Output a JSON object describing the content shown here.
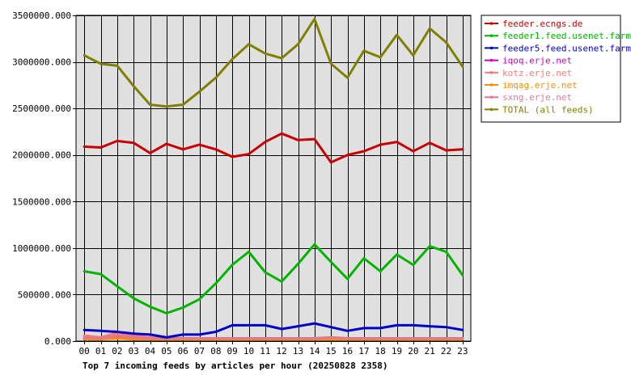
{
  "chart_data": {
    "type": "line",
    "title": "Top 7 incoming feeds by articles per hour (20250828 2358)",
    "categories": [
      "00",
      "01",
      "02",
      "03",
      "04",
      "05",
      "06",
      "07",
      "08",
      "09",
      "10",
      "11",
      "12",
      "13",
      "14",
      "15",
      "16",
      "17",
      "18",
      "19",
      "20",
      "21",
      "22",
      "23"
    ],
    "ylim": [
      0,
      3500000
    ],
    "y_ticks": [
      0,
      500000,
      1000000,
      1500000,
      2000000,
      2500000,
      3000000,
      3500000
    ],
    "y_tick_labels": [
      "0.000",
      "500000.000",
      "1000000.000",
      "1500000.000",
      "2000000.000",
      "2500000.000",
      "3000000.000",
      "3500000.000"
    ],
    "grid": true,
    "legend_position": "top-right",
    "series": [
      {
        "name": "feeder.ecngs.de",
        "color": "#c80000",
        "values": [
          2090000,
          2080000,
          2150000,
          2130000,
          2020000,
          2120000,
          2060000,
          2110000,
          2060000,
          1980000,
          2010000,
          2140000,
          2230000,
          2160000,
          2170000,
          1920000,
          2000000,
          2040000,
          2110000,
          2140000,
          2040000,
          2130000,
          2050000,
          2060000
        ]
      },
      {
        "name": "feeder1.feed.usenet.farm",
        "color": "#00b400",
        "values": [
          750000,
          720000,
          590000,
          460000,
          370000,
          300000,
          360000,
          450000,
          620000,
          820000,
          960000,
          740000,
          640000,
          830000,
          1040000,
          850000,
          670000,
          890000,
          750000,
          930000,
          820000,
          1020000,
          960000,
          710000
        ]
      },
      {
        "name": "feeder5.feed.usenet.farm",
        "color": "#0000c8",
        "values": [
          120000,
          110000,
          100000,
          80000,
          70000,
          40000,
          70000,
          70000,
          100000,
          170000,
          170000,
          170000,
          130000,
          160000,
          190000,
          150000,
          110000,
          140000,
          140000,
          170000,
          170000,
          160000,
          150000,
          120000
        ]
      },
      {
        "name": "iqoq.erje.net",
        "color": "#c800c8",
        "values": [
          30000,
          30000,
          40000,
          30000,
          30000,
          30000,
          30000,
          30000,
          30000,
          30000,
          30000,
          30000,
          30000,
          30000,
          30000,
          30000,
          30000,
          30000,
          30000,
          30000,
          30000,
          30000,
          30000,
          30000
        ]
      },
      {
        "name": "kotz.erje.net",
        "color": "#ff7878",
        "values": [
          60000,
          40000,
          90000,
          60000,
          40000,
          30000,
          30000,
          30000,
          30000,
          30000,
          30000,
          30000,
          30000,
          30000,
          30000,
          40000,
          30000,
          30000,
          30000,
          30000,
          30000,
          30000,
          30000,
          30000
        ]
      },
      {
        "name": "imqag.erje.net",
        "color": "#ff8c00",
        "values": [
          20000,
          20000,
          30000,
          20000,
          20000,
          20000,
          20000,
          20000,
          20000,
          20000,
          20000,
          20000,
          20000,
          20000,
          20000,
          20000,
          20000,
          20000,
          20000,
          20000,
          20000,
          20000,
          20000,
          20000
        ]
      },
      {
        "name": "sxng.erje.net",
        "color": "#e07890",
        "values": [
          40000,
          30000,
          60000,
          40000,
          30000,
          30000,
          30000,
          30000,
          30000,
          30000,
          30000,
          30000,
          30000,
          30000,
          30000,
          40000,
          30000,
          30000,
          30000,
          30000,
          30000,
          30000,
          30000,
          30000
        ]
      },
      {
        "name": "TOTAL (all feeds)",
        "color": "#808000",
        "values": [
          3070000,
          2980000,
          2960000,
          2740000,
          2540000,
          2520000,
          2540000,
          2680000,
          2830000,
          3030000,
          3190000,
          3090000,
          3040000,
          3190000,
          3460000,
          2980000,
          2830000,
          3120000,
          3050000,
          3290000,
          3070000,
          3360000,
          3210000,
          2950000
        ]
      }
    ]
  }
}
